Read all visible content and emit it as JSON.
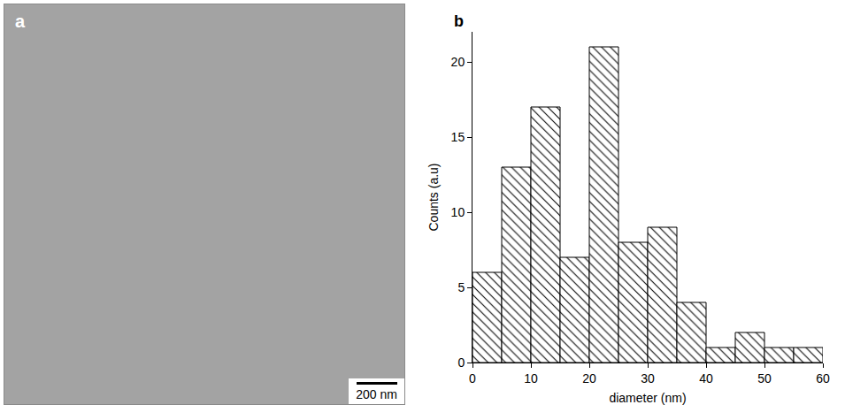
{
  "image_panel": {
    "panel_label": "a",
    "scale_bar_label": "200 nm"
  },
  "chart_data": {
    "type": "histogram",
    "panel_label": "b",
    "x_label": "diameter (nm)",
    "y_label": "Counts (a.u)",
    "bins": [
      0,
      5,
      10,
      15,
      20,
      25,
      30,
      35,
      40,
      45,
      50,
      55,
      60
    ],
    "values": [
      6,
      13,
      17,
      7,
      21,
      8,
      9,
      4,
      1,
      2,
      1,
      1
    ],
    "color": "#ffffff",
    "marker": "hatched",
    "xlim": [
      0,
      60
    ],
    "xticks": [
      0,
      10,
      20,
      30,
      40,
      50,
      60
    ],
    "ylim": [
      0,
      22
    ],
    "yticks": [
      0,
      5,
      10,
      15,
      20
    ],
    "grid": false
  }
}
